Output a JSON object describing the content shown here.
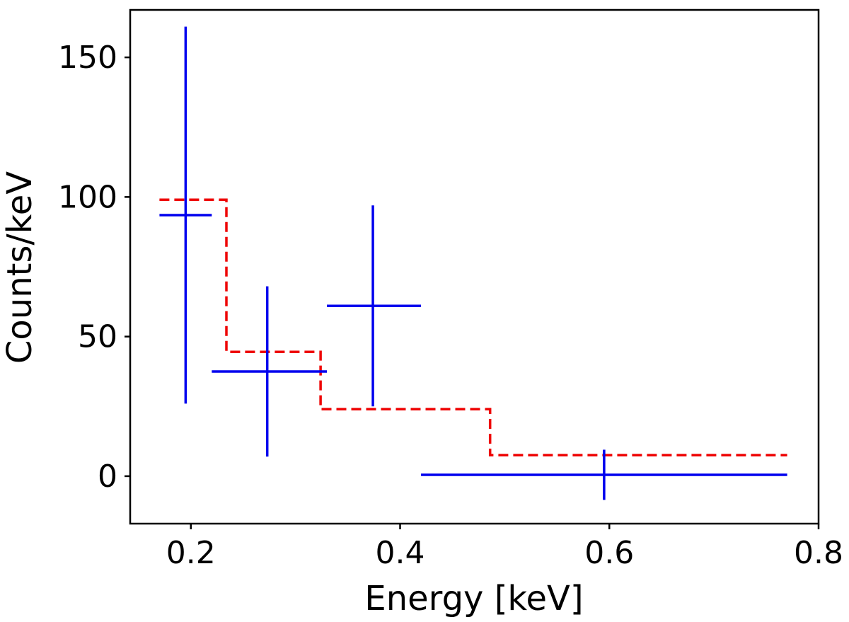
{
  "chart_data": {
    "type": "scatter",
    "xlabel": "Energy [keV]",
    "ylabel": "Counts/keV",
    "xlim": [
      0.142,
      0.8
    ],
    "ylim": [
      -17,
      167
    ],
    "x_ticks": [
      0.2,
      0.4,
      0.6,
      0.8
    ],
    "x_tick_labels": [
      "0.2",
      "0.4",
      "0.6",
      "0.8"
    ],
    "y_ticks": [
      0,
      50,
      100,
      150
    ],
    "y_tick_labels": [
      "0",
      "50",
      "100",
      "150"
    ],
    "grid": false,
    "legend": null,
    "series": [
      {
        "kind": "errorbar",
        "color": "#0000ee",
        "points": [
          {
            "x": 0.195,
            "xlo": 0.17,
            "xhi": 0.22,
            "y": 93.5,
            "ylo": 26,
            "yhi": 161
          },
          {
            "x": 0.273,
            "xlo": 0.22,
            "xhi": 0.33,
            "y": 37.5,
            "ylo": 7,
            "yhi": 68
          },
          {
            "x": 0.374,
            "xlo": 0.33,
            "xhi": 0.42,
            "y": 61,
            "ylo": 25,
            "yhi": 97
          },
          {
            "x": 0.595,
            "xlo": 0.42,
            "xhi": 0.77,
            "y": 0.5,
            "ylo": -8.5,
            "yhi": 9.5
          }
        ]
      },
      {
        "kind": "step",
        "style": "dashed",
        "color": "#ee0000",
        "bins": [
          {
            "x0": 0.17,
            "x1": 0.234,
            "y": 99
          },
          {
            "x0": 0.234,
            "x1": 0.324,
            "y": 44.5
          },
          {
            "x0": 0.324,
            "x1": 0.486,
            "y": 24
          },
          {
            "x0": 0.486,
            "x1": 0.77,
            "y": 7.5
          }
        ]
      }
    ]
  }
}
